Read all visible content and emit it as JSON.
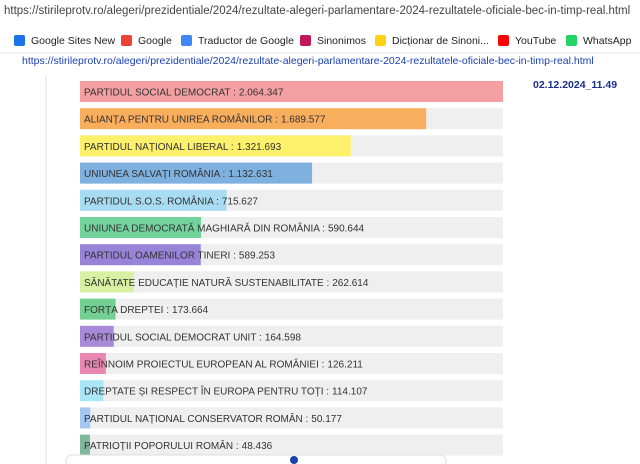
{
  "browser": {
    "url": "https://stirileprotv.ro/alegeri/prezidentiale/2024/rezultate-alegeri-parlamentare-2024-rezultatele-oficiale-bec-in-timp-real.html",
    "bookmarks": [
      "Google Sites New",
      "Google",
      "Traductor de Google",
      "Sinonimos",
      "Dicționar de Sinoni...",
      "YouTube",
      "WhatsApp"
    ]
  },
  "page": {
    "link": "https://stirileprotv.ro/alegeri/prezidentiale/2024/rezultate-alegeri-parlamentare-2024-rezultatele-oficiale-bec-in-timp-real.html",
    "timestamp": "02.12.2024_11.49"
  },
  "chart_data": {
    "type": "bar",
    "categories": [
      "PARTIDUL SOCIAL DEMOCRAT :",
      "ALIANȚA PENTRU UNIREA ROMÂNILOR :",
      "PARTIDUL NAȚIONAL LIBERAL :",
      "UNIUNEA SALVAȚI ROMÂNIA :",
      "PARTIDUL S.O.S. ROMÂNIA :",
      "UNIUNEA DEMOCRATĂ MAGHIARĂ DIN ROMÂNIA :",
      "PARTIDUL OAMENILOR TINERI :",
      "SĂNĂTATE EDUCAȚIE NATURĂ SUSTENABILITATE :",
      "FORȚA DREPTEI :",
      "PARTIDUL SOCIAL DEMOCRAT UNIT :",
      "REÎNNOIM PROIECTUL EUROPEAN AL ROMÂNIEI :",
      "DREPTATE ȘI RESPECT ÎN EUROPA PENTRU TOȚI :",
      "PARTIDUL NAȚIONAL CONSERVATOR ROMÂN :",
      "PATRIOȚII POPORULUI ROMÂN :"
    ],
    "values": [
      2064347,
      1689577,
      1321693,
      1132631,
      715627,
      590644,
      589253,
      262614,
      173664,
      164598,
      126211,
      114107,
      50177,
      48436
    ],
    "value_labels": [
      "2.064.347",
      "1.689.577",
      "1.321.693",
      "1.132.631",
      "715.627",
      "590.644",
      "589.253",
      "262.614",
      "173.664",
      "164.598",
      "126.211",
      "114.107",
      "50.177",
      "48.436"
    ],
    "colors": [
      "#f4a0a2",
      "#f9ae5e",
      "#fdf06a",
      "#7fb1e0",
      "#a8dcf2",
      "#72d49c",
      "#9784d8",
      "#d8f0a2",
      "#74cf92",
      "#a78ad8",
      "#e888b2",
      "#a8e6f8",
      "#a4c8f2",
      "#80b89c"
    ],
    "xlim": [
      0,
      2064347
    ]
  }
}
